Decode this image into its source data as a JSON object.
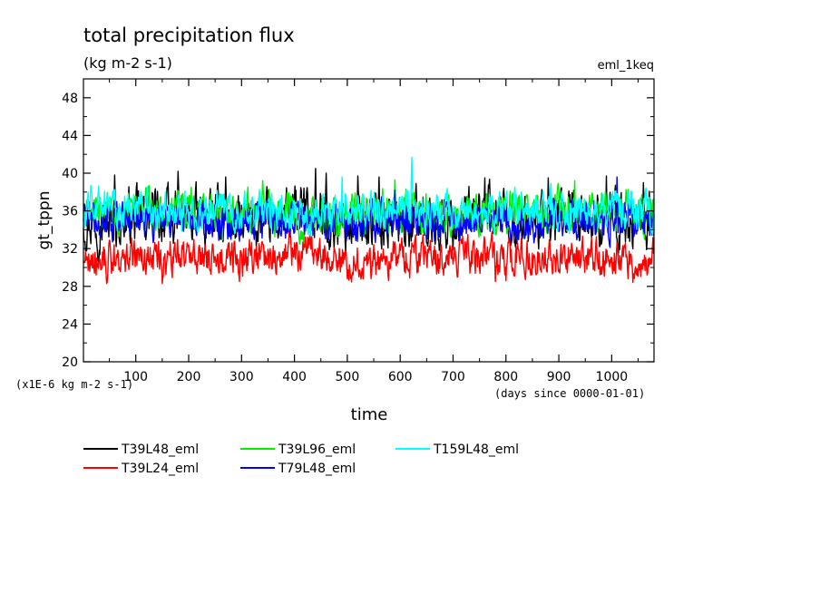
{
  "chart_data": {
    "type": "line",
    "title": "total precipitation flux",
    "subtitle": "(kg m-2 s-1)",
    "experiment_label": "eml_1keq",
    "ylabel": "gt_tppn",
    "xlabel": "time",
    "x_unit_note": "(days since 0000-01-01)",
    "y_scale_note": "(x1E-6 kg m-2 s-1)",
    "xlim": [
      1,
      1080
    ],
    "ylim": [
      20,
      50
    ],
    "x_ticks": [
      100,
      200,
      300,
      400,
      500,
      600,
      700,
      800,
      900,
      1000
    ],
    "x_tick_labels": [
      "100",
      "200",
      "300",
      "400",
      "500",
      "600",
      "700",
      "800",
      "900",
      "1000"
    ],
    "y_ticks": [
      20,
      24,
      28,
      32,
      36,
      40,
      44,
      48
    ],
    "y_tick_labels": [
      "20",
      "24",
      "28",
      "32",
      "36",
      "40",
      "44",
      "48"
    ],
    "grid": false,
    "legend_position": "below",
    "series": [
      {
        "name": "T39L48_eml",
        "color": "#000000",
        "x": [
          1,
          60,
          120,
          180,
          240,
          300,
          360,
          420,
          480,
          540,
          600,
          660,
          720,
          780,
          840,
          900,
          960,
          1020,
          1080
        ],
        "y": [
          35.2,
          34.8,
          35.6,
          35.1,
          35.4,
          34.6,
          34.9,
          35.9,
          34.5,
          35.0,
          35.2,
          34.7,
          34.9,
          35.8,
          34.6,
          35.0,
          35.3,
          34.8,
          35.1
        ],
        "amplitude": 2.2,
        "spikes": [
          [
            60,
            39.8
          ],
          [
            180,
            40.2
          ],
          [
            270,
            39.6
          ],
          [
            440,
            40.5
          ],
          [
            460,
            40.0
          ],
          [
            520,
            39.7
          ],
          [
            560,
            39.6
          ],
          [
            630,
            38.9
          ],
          [
            760,
            39.5
          ],
          [
            880,
            39.5
          ],
          [
            990,
            39.7
          ],
          [
            1060,
            39.0
          ]
        ]
      },
      {
        "name": "T39L24_eml",
        "color": "#ff0000",
        "x": [
          1,
          60,
          120,
          180,
          240,
          300,
          360,
          420,
          480,
          540,
          600,
          660,
          720,
          780,
          840,
          900,
          960,
          1020,
          1080
        ],
        "y": [
          31.2,
          30.8,
          31.0,
          31.3,
          31.1,
          30.9,
          31.4,
          31.6,
          31.0,
          30.6,
          31.1,
          31.3,
          31.0,
          30.9,
          31.2,
          30.8,
          31.1,
          30.7,
          31.0
        ],
        "amplitude": 1.5,
        "spikes": [
          [
            45,
            28.3
          ],
          [
            150,
            28.3
          ],
          [
            390,
            33.8
          ],
          [
            500,
            28.8
          ],
          [
            780,
            28.5
          ],
          [
            800,
            28.6
          ],
          [
            1040,
            28.4
          ]
        ]
      },
      {
        "name": "T39L96_eml",
        "color": "#00ee00",
        "x": [
          1,
          60,
          120,
          180,
          240,
          300,
          360,
          420,
          480,
          540,
          600,
          660,
          720,
          780,
          840,
          900,
          960,
          1020,
          1080
        ],
        "y": [
          35.8,
          35.6,
          35.9,
          36.0,
          35.7,
          36.1,
          35.8,
          35.5,
          35.7,
          35.9,
          35.6,
          35.8,
          35.4,
          35.6,
          35.9,
          36.0,
          35.7,
          36.1,
          35.8
        ],
        "amplitude": 1.7,
        "spikes": [
          [
            340,
            39.2
          ],
          [
            590,
            39.3
          ],
          [
            930,
            39.2
          ]
        ]
      },
      {
        "name": "T79L48_eml",
        "color": "#0000ff",
        "x": [
          1,
          60,
          120,
          180,
          240,
          300,
          360,
          420,
          480,
          540,
          600,
          660,
          720,
          780,
          840,
          900,
          960,
          1020,
          1080
        ],
        "y": [
          35.0,
          34.6,
          34.8,
          35.1,
          34.9,
          34.7,
          35.0,
          34.8,
          34.5,
          34.9,
          35.1,
          34.6,
          34.8,
          35.0,
          34.7,
          34.9,
          35.2,
          34.8,
          34.9
        ],
        "amplitude": 1.5,
        "spikes": [
          [
            590,
            38.2
          ],
          [
            1010,
            39.6
          ]
        ]
      },
      {
        "name": "T159L48_eml",
        "color": "#00ffff",
        "x": [
          1,
          60,
          120,
          180,
          240,
          300,
          360,
          420,
          480,
          540,
          600,
          660,
          720,
          780,
          840,
          900,
          960,
          1020,
          1080
        ],
        "y": [
          36.0,
          36.2,
          36.0,
          35.8,
          36.1,
          35.9,
          36.2,
          36.0,
          35.8,
          36.1,
          36.3,
          35.9,
          35.7,
          36.0,
          36.2,
          35.8,
          36.1,
          36.0,
          35.9
        ],
        "amplitude": 1.5,
        "spikes": [
          [
            15,
            38.7
          ],
          [
            490,
            39.6
          ],
          [
            622,
            41.7
          ],
          [
            885,
            38.9
          ]
        ]
      }
    ]
  }
}
